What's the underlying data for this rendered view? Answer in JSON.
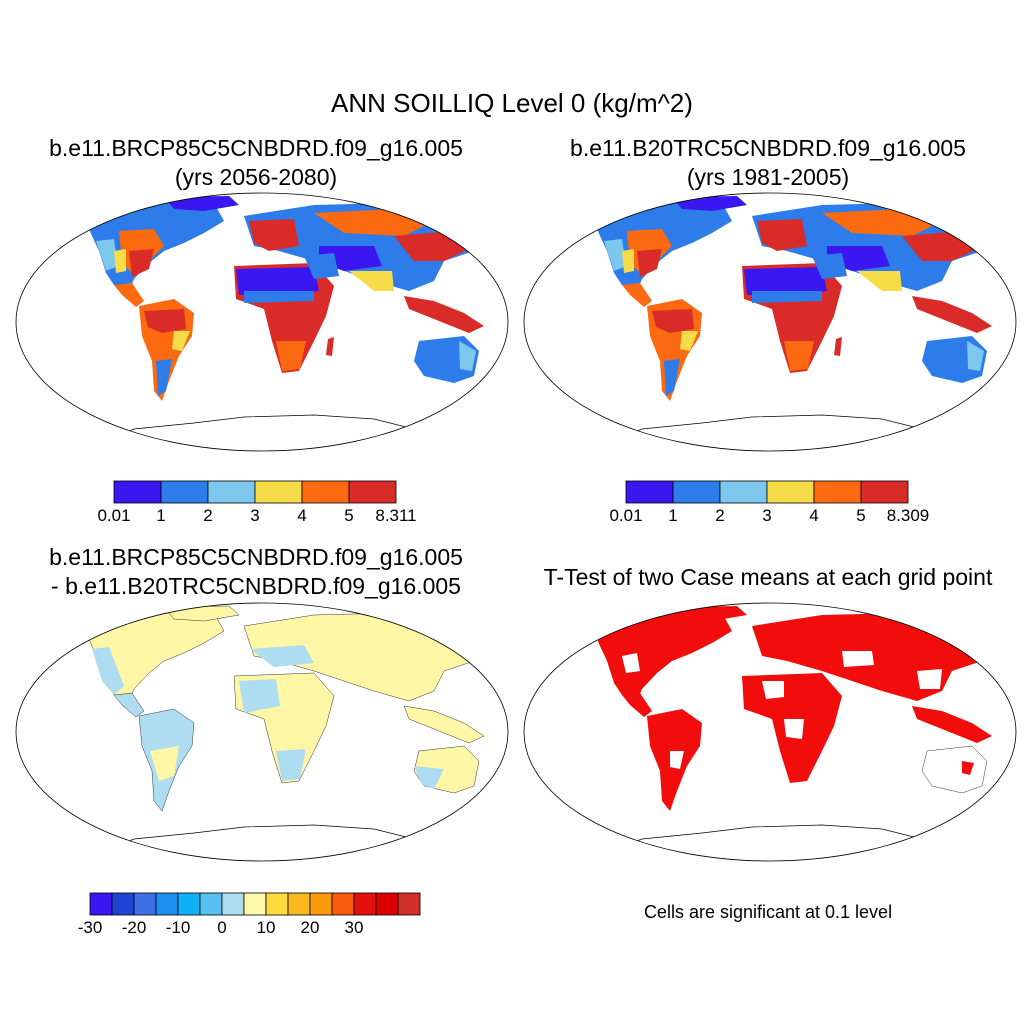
{
  "main_title": "ANN SOILLIQ Level 0 (kg/m^2)",
  "panels": [
    {
      "id": "p1",
      "title_line1": "b.e11.BRCP85C5CNBDRD.f09_g16.005",
      "title_line2": "(yrs 2056-2080)"
    },
    {
      "id": "p2",
      "title_line1": "b.e11.B20TRC5CNBDRD.f09_g16.005",
      "title_line2": "(yrs 1981-2005)"
    },
    {
      "id": "p3",
      "title_line1": "b.e11.BRCP85C5CNBDRD.f09_g16.005",
      "title_line2": "- b.e11.B20TRC5CNBDRD.f09_g16.005"
    },
    {
      "id": "p4",
      "title_line1": "T-Test of two Case means at each grid point"
    }
  ],
  "colorbars": {
    "case1": {
      "labels": [
        "0.01",
        "1",
        "2",
        "3",
        "4",
        "5",
        "8.311"
      ],
      "colors": [
        "#3a17f0",
        "#2d7cea",
        "#7dc7ec",
        "#f7dc4a",
        "#fb6a10",
        "#d92b27"
      ]
    },
    "case2": {
      "labels": [
        "0.01",
        "1",
        "2",
        "3",
        "4",
        "5",
        "8.309"
      ],
      "colors": [
        "#3a17f0",
        "#2d7cea",
        "#7dc7ec",
        "#f7dc4a",
        "#fb6a10",
        "#d92b27"
      ]
    },
    "diff": {
      "labels": [
        "-30",
        "-20",
        "-10",
        "0",
        "10",
        "20",
        "30"
      ],
      "colors": [
        "#3a17f0",
        "#1f43d4",
        "#3e6fe4",
        "#1c8ff0",
        "#0fb0f5",
        "#56c1ee",
        "#acdcf0",
        "#fffaa9",
        "#fcdc3c",
        "#fbb81e",
        "#fb9a0c",
        "#fa5a0c",
        "#e3120c",
        "#dd0000",
        "#d2302a"
      ]
    }
  },
  "significance_note": "Cells are significant at 0.1 level",
  "colors": {
    "significant": "#f20d0d",
    "diff_positive": "#fff6a6",
    "diff_negative": "#aedcf0"
  }
}
